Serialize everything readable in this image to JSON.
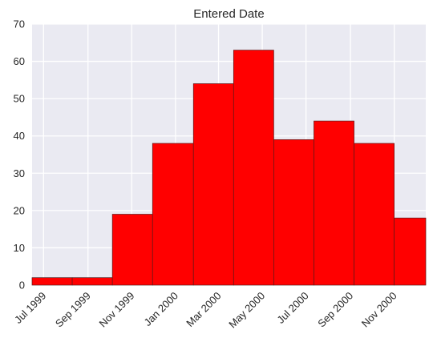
{
  "chart_data": {
    "type": "bar",
    "title": "Entered Date",
    "xlabel": "",
    "ylabel": "",
    "ylim": [
      0,
      70
    ],
    "yticks": [
      0,
      10,
      20,
      30,
      40,
      50,
      60,
      70
    ],
    "xlim": [
      "1999-06-15",
      "2000-12-15"
    ],
    "xtick_labels": [
      "Jul 1999",
      "Sep 1999",
      "Nov 1999",
      "Jan 2000",
      "Mar 2000",
      "May 2000",
      "Jul 2000",
      "Sep 2000",
      "Nov 2000"
    ],
    "xtick_dates": [
      "1999-07-01",
      "1999-09-01",
      "1999-11-01",
      "2000-01-01",
      "2000-03-01",
      "2000-05-01",
      "2000-07-01",
      "2000-09-01",
      "2000-11-01"
    ],
    "bins": [
      {
        "start": "1999-06-15",
        "end": "1999-08-10",
        "value": 2
      },
      {
        "start": "1999-08-10",
        "end": "1999-10-05",
        "value": 2
      },
      {
        "start": "1999-10-05",
        "end": "1999-11-30",
        "value": 19
      },
      {
        "start": "1999-11-30",
        "end": "2000-01-26",
        "value": 38
      },
      {
        "start": "2000-01-26",
        "end": "2000-03-22",
        "value": 54
      },
      {
        "start": "2000-03-22",
        "end": "2000-05-17",
        "value": 63
      },
      {
        "start": "2000-05-17",
        "end": "2000-07-12",
        "value": 39
      },
      {
        "start": "2000-07-12",
        "end": "2000-09-06",
        "value": 44
      },
      {
        "start": "2000-09-06",
        "end": "2000-11-01",
        "value": 38
      },
      {
        "start": "2000-11-01",
        "end": "2000-12-15",
        "value": 18
      }
    ],
    "grid": true,
    "colors": {
      "bar": "#ff0000",
      "bar_edge": "#5a1a1a",
      "plot_bg": "#eaeaf2",
      "grid": "#ffffff"
    }
  }
}
